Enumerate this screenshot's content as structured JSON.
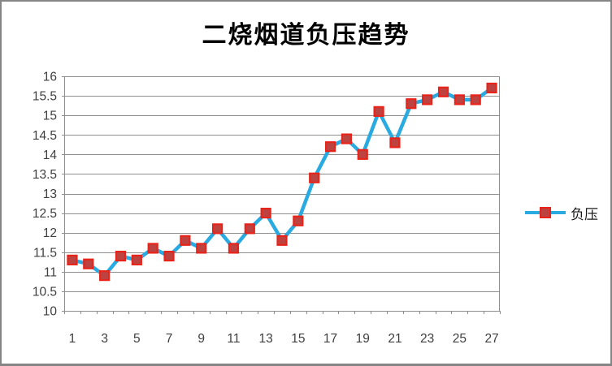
{
  "window": {
    "background": "#ffffff",
    "frame_border_color": "#858585"
  },
  "chart_data": {
    "type": "line",
    "title": "二烧烟道负压趋势",
    "categories": [
      1,
      2,
      3,
      4,
      5,
      6,
      7,
      8,
      9,
      10,
      11,
      12,
      13,
      14,
      15,
      16,
      17,
      18,
      19,
      20,
      21,
      22,
      23,
      24,
      25,
      26,
      27
    ],
    "series": [
      {
        "name": "负压",
        "values": [
          11.3,
          11.2,
          10.9,
          11.4,
          11.3,
          11.6,
          11.4,
          11.8,
          11.6,
          12.1,
          11.6,
          12.1,
          12.5,
          11.8,
          12.3,
          13.4,
          14.2,
          14.4,
          14.0,
          15.1,
          14.3,
          15.3,
          15.4,
          15.6,
          15.4,
          15.4,
          15.7
        ],
        "line_color": "#29abe2",
        "marker_shape": "square",
        "marker_fill": "#bd4340",
        "marker_border": "#e8241a"
      }
    ],
    "xlabel": "",
    "ylabel": "",
    "ylim": [
      10,
      16
    ],
    "y_tick_step": 0.5,
    "y_tick_labels": [
      "16",
      "15.5",
      "15",
      "14.5",
      "14",
      "13.5",
      "13",
      "12.5",
      "12",
      "11.5",
      "11",
      "10.5",
      "10"
    ],
    "x_tick_labels_shown": [
      "1",
      "3",
      "5",
      "7",
      "9",
      "11",
      "13",
      "15",
      "17",
      "19",
      "21",
      "23",
      "25",
      "27"
    ],
    "grid": true,
    "gridline_color": "#8e8e8e",
    "axis_text_color": "#3f3f3f",
    "legend_position": "right"
  },
  "legend": {
    "label": "负压"
  }
}
